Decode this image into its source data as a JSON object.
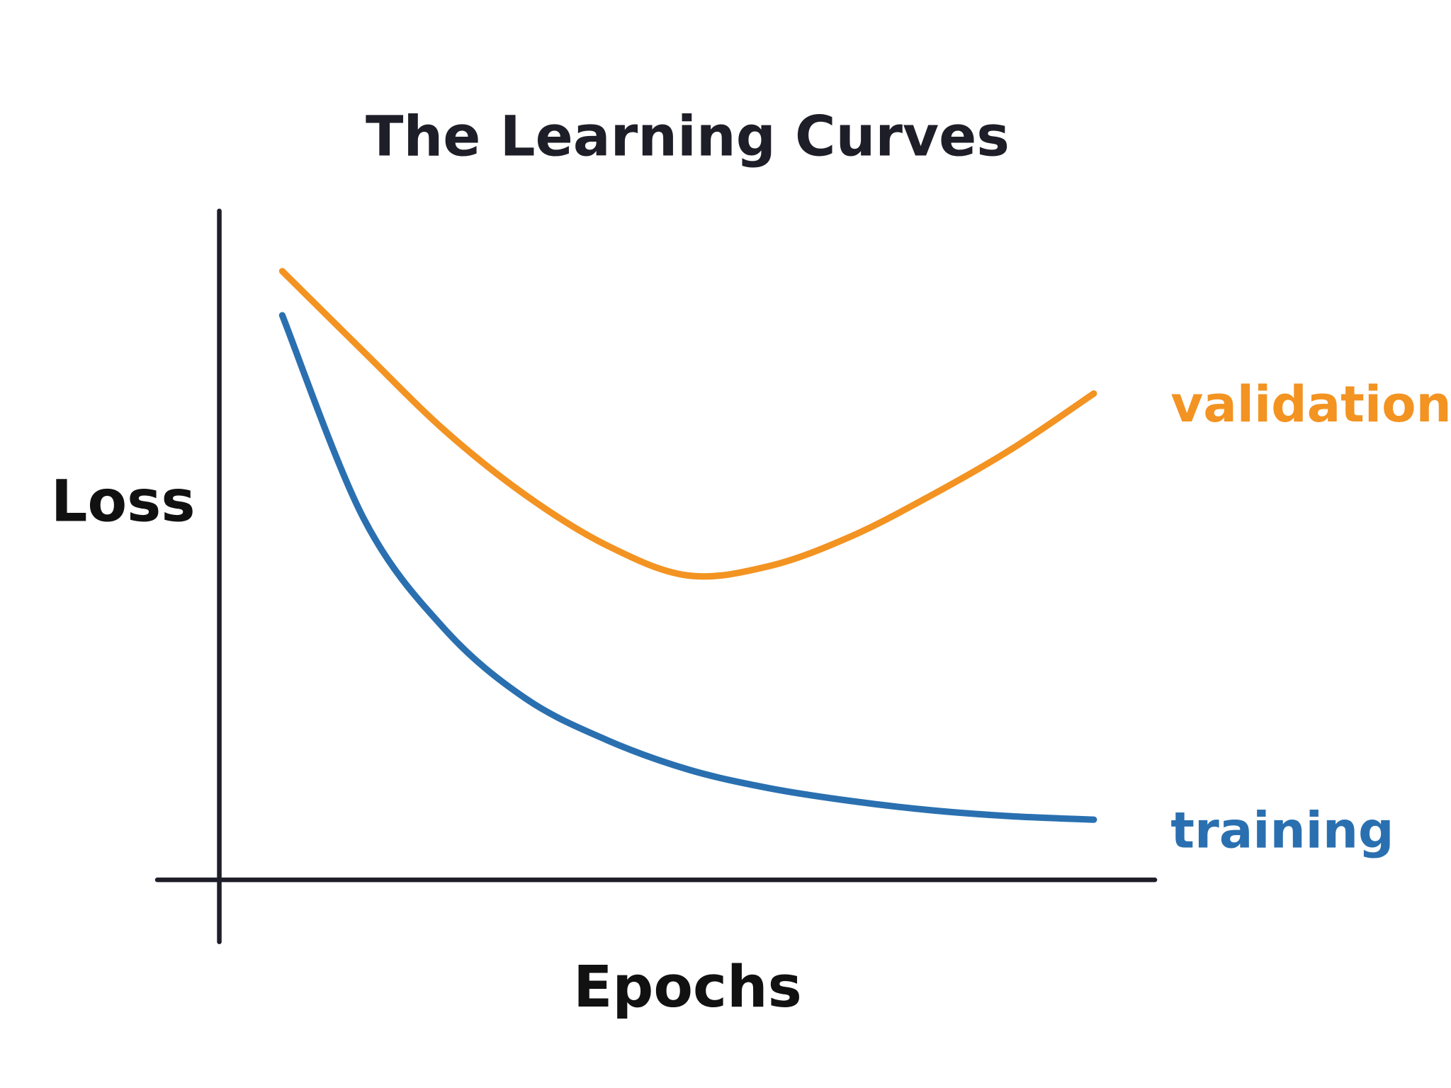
{
  "chart_data": {
    "type": "line",
    "title": "The Learning Curves",
    "xlabel": "Epochs",
    "ylabel": "Loss",
    "x": [
      0,
      1,
      2,
      3,
      4,
      5,
      6,
      7,
      8,
      9,
      10
    ],
    "xlim": [
      0,
      10
    ],
    "ylim": [
      0,
      1
    ],
    "grid": false,
    "ticks": false,
    "legend": "inline labels at right end of each curve",
    "axis_color": "#1e1e28",
    "series": [
      {
        "name": "validation",
        "color": "#f39322",
        "values": [
          0.91,
          0.79,
          0.672,
          0.575,
          0.5,
          0.455,
          0.469,
          0.513,
          0.575,
          0.645,
          0.727
        ]
      },
      {
        "name": "training",
        "color": "#2a70b0",
        "values": [
          0.844,
          0.541,
          0.375,
          0.271,
          0.209,
          0.165,
          0.137,
          0.118,
          0.104,
          0.095,
          0.09
        ]
      }
    ]
  }
}
